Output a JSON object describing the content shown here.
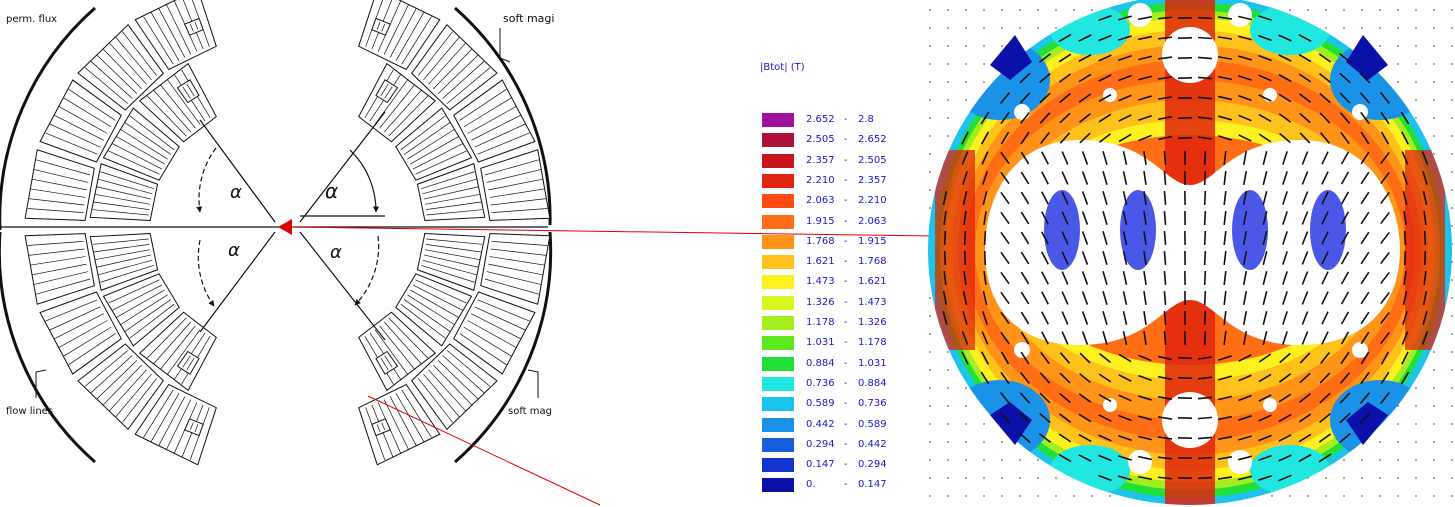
{
  "diagram": {
    "label_top_left": "perm. flux",
    "label_top_right": "soft magi",
    "label_bottom_left": "flow lines",
    "label_bottom_right": "soft mag",
    "angle_symbol": "α",
    "angle_labels": [
      "α",
      "α",
      "α",
      "α"
    ]
  },
  "legend": {
    "title": "|Btot| (T)",
    "items": [
      {
        "lo": "2.652",
        "hi": "2.8",
        "color": "#a0109c"
      },
      {
        "lo": "2.505",
        "hi": "2.652",
        "color": "#b0103c"
      },
      {
        "lo": "2.357",
        "hi": "2.505",
        "color": "#c8141a"
      },
      {
        "lo": "2.210",
        "hi": "2.357",
        "color": "#e0240e"
      },
      {
        "lo": "2.063",
        "hi": "2.210",
        "color": "#ff4a10"
      },
      {
        "lo": "1.915",
        "hi": "2.063",
        "color": "#ff6e14"
      },
      {
        "lo": "1.768",
        "hi": "1.915",
        "color": "#ff9418"
      },
      {
        "lo": "1.621",
        "hi": "1.768",
        "color": "#ffc21c"
      },
      {
        "lo": "1.473",
        "hi": "1.621",
        "color": "#fff020"
      },
      {
        "lo": "1.326",
        "hi": "1.473",
        "color": "#d8f820"
      },
      {
        "lo": "1.178",
        "hi": "1.326",
        "color": "#a4ee20"
      },
      {
        "lo": "1.031",
        "hi": "1.178",
        "color": "#5ee820"
      },
      {
        "lo": "0.884",
        "hi": "1.031",
        "color": "#20e038"
      },
      {
        "lo": "0.736",
        "hi": "0.884",
        "color": "#20e8e0"
      },
      {
        "lo": "0.589",
        "hi": "0.736",
        "color": "#1cc4ec"
      },
      {
        "lo": "0.442",
        "hi": "0.589",
        "color": "#1a92e8"
      },
      {
        "lo": "0.294",
        "hi": "0.442",
        "color": "#1a5ee0"
      },
      {
        "lo": "0.147",
        "hi": "0.294",
        "color": "#1434d0"
      },
      {
        "lo": "0.",
        "hi": "0.147",
        "color": "#0a10a8"
      }
    ]
  }
}
